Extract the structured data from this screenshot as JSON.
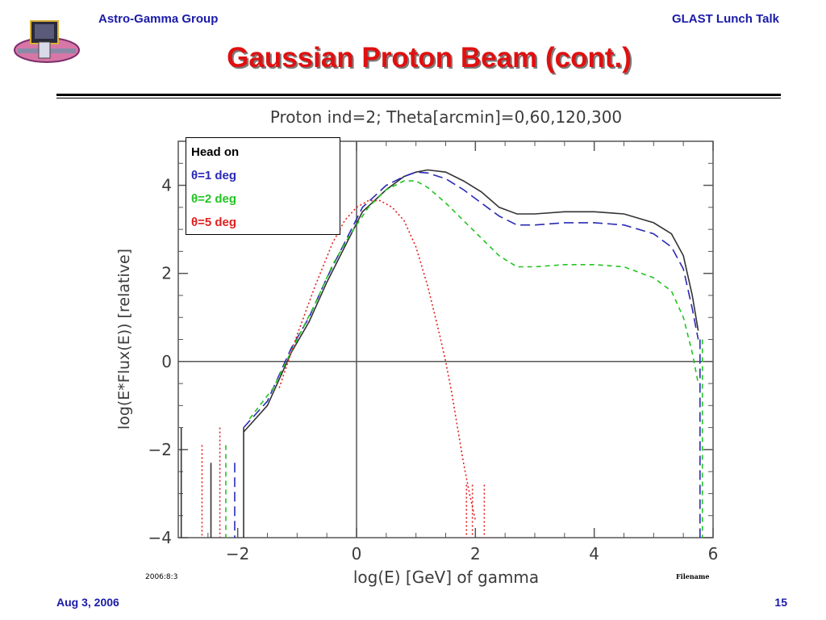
{
  "header": {
    "left": "Astro-Gamma Group",
    "right": "GLAST Lunch Talk"
  },
  "slide_title": "Gaussian Proton Beam (cont.)",
  "footer": {
    "date": "Aug 3, 2006",
    "page": "15"
  },
  "colors": {
    "header_text": "#1a1aa8",
    "title": "#e01010"
  },
  "chart_data": {
    "type": "line",
    "title": "Proton  ind=2;  Theta[arcmin]=0,60,120,300",
    "xlabel": "log(E)  [GeV]  of  gamma",
    "ylabel": "log(E*Flux(E))  [relative]",
    "xlim": [
      -3,
      6
    ],
    "ylim": [
      -4,
      5
    ],
    "x_ticks": [
      -2,
      0,
      2,
      4,
      6
    ],
    "x_tick_labels": [
      "−2",
      "0",
      "2",
      "4",
      "6"
    ],
    "y_ticks": [
      -4,
      -2,
      0,
      2,
      4
    ],
    "y_tick_labels": [
      "−4",
      "−2",
      "0",
      "2",
      "4"
    ],
    "date_stamp": "2006:8:3",
    "filename_label": "Filename",
    "grid": false,
    "legend_position": "top-left",
    "series": [
      {
        "name": "Head on",
        "color": "#333333",
        "dash": "solid",
        "x": [
          -1.9,
          -1.5,
          -1.1,
          -0.8,
          -0.5,
          -0.2,
          0.1,
          0.5,
          0.8,
          1.0,
          1.2,
          1.5,
          1.8,
          2.1,
          2.4,
          2.7,
          3.0,
          3.5,
          4.0,
          4.5,
          5.0,
          5.3,
          5.5,
          5.65,
          5.75
        ],
        "y": [
          -1.6,
          -1.0,
          0.2,
          0.9,
          1.8,
          2.6,
          3.4,
          3.9,
          4.2,
          4.3,
          4.35,
          4.3,
          4.1,
          3.85,
          3.5,
          3.35,
          3.35,
          3.4,
          3.4,
          3.35,
          3.15,
          2.9,
          2.4,
          1.5,
          0.7
        ]
      },
      {
        "name": "θ=1 deg",
        "color": "#2a2ab5",
        "dash": "long-dash",
        "x": [
          -1.9,
          -1.5,
          -1.1,
          -0.8,
          -0.5,
          -0.2,
          0.1,
          0.5,
          0.8,
          1.0,
          1.2,
          1.5,
          1.8,
          2.1,
          2.4,
          2.7,
          3.0,
          3.5,
          4.0,
          4.5,
          5.0,
          5.3,
          5.5,
          5.65,
          5.75
        ],
        "y": [
          -1.5,
          -0.9,
          0.3,
          1.0,
          1.9,
          2.7,
          3.5,
          4.0,
          4.2,
          4.3,
          4.28,
          4.15,
          3.9,
          3.6,
          3.3,
          3.1,
          3.1,
          3.15,
          3.15,
          3.1,
          2.9,
          2.6,
          2.1,
          1.2,
          0.5
        ]
      },
      {
        "name": "θ=2 deg",
        "color": "#22c422",
        "dash": "dash",
        "x": [
          -1.8,
          -1.4,
          -1.0,
          -0.7,
          -0.4,
          -0.1,
          0.2,
          0.5,
          0.8,
          1.0,
          1.2,
          1.5,
          1.8,
          2.1,
          2.4,
          2.7,
          3.0,
          3.5,
          4.0,
          4.5,
          5.0,
          5.3,
          5.5,
          5.65,
          5.75
        ],
        "y": [
          -1.3,
          -0.6,
          0.5,
          1.3,
          2.2,
          2.9,
          3.5,
          3.9,
          4.1,
          4.1,
          3.95,
          3.6,
          3.2,
          2.8,
          2.4,
          2.15,
          2.15,
          2.2,
          2.2,
          2.15,
          1.9,
          1.6,
          1.0,
          0.2,
          -0.5
        ]
      },
      {
        "name": "θ=5 deg",
        "color": "#e02020",
        "dash": "dot",
        "x": [
          -1.3,
          -1.0,
          -0.7,
          -0.4,
          -0.2,
          0.0,
          0.2,
          0.4,
          0.6,
          0.8,
          1.0,
          1.2,
          1.4,
          1.5,
          1.6,
          1.7,
          1.8,
          1.9,
          2.0
        ],
        "y": [
          -0.6,
          0.6,
          1.7,
          2.7,
          3.2,
          3.5,
          3.65,
          3.65,
          3.5,
          3.2,
          2.6,
          1.7,
          0.6,
          0.0,
          -0.7,
          -1.5,
          -2.3,
          -3.0,
          -3.6
        ]
      }
    ]
  }
}
